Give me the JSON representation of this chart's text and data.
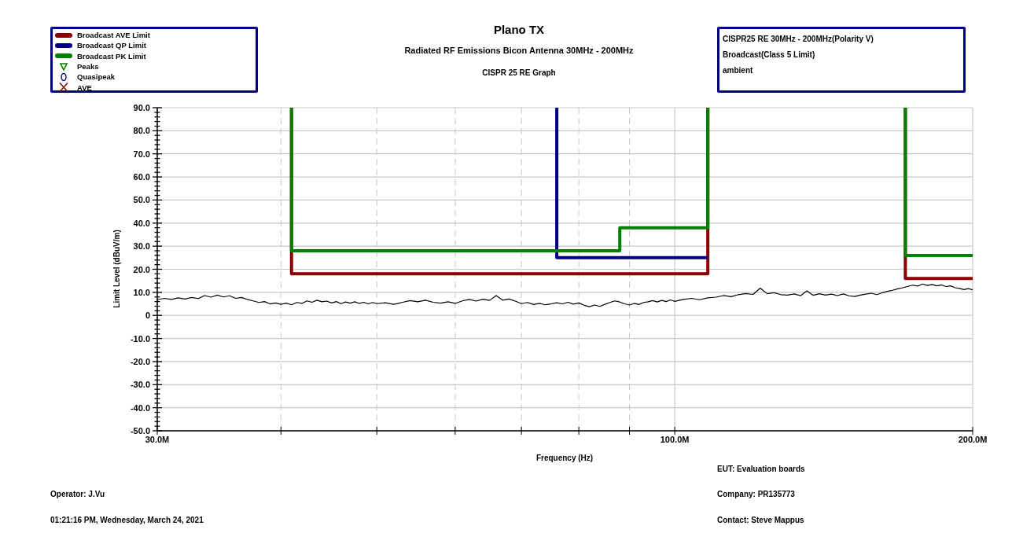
{
  "chart_data": {
    "type": "line",
    "title": "Plano TX",
    "subtitle": "Radiated RF Emissions Bicon Antenna 30MHz - 200MHz",
    "xlabel": "Frequency (Hz)",
    "ylabel": "Limit Level (dBuV/m)",
    "annotations": [
      "CISPR 25 RE Graph",
      "CISPR25 RE 30MHz - 200MHz(Polarity V)",
      "Broadcast(Class 5 Limit)",
      "ambient",
      "EUT: Evaluation boards",
      "Operator: J.Vu",
      "Company: PR135773",
      "01:21:16 PM, Wednesday, March 24, 2021",
      "Contact: Steve Mappus"
    ],
    "log": "x",
    "grid": true,
    "legend": "top left",
    "xlim": [
      30000000,
      200000000
    ],
    "xticks": [
      {
        "value": 30000000,
        "label": "30.0M"
      },
      {
        "value": 40000000,
        "label": null
      },
      {
        "value": 50000000,
        "label": null
      },
      {
        "value": 60000000,
        "label": null
      },
      {
        "value": 70000000,
        "label": null
      },
      {
        "value": 80000000,
        "label": null
      },
      {
        "value": 90000000,
        "label": null
      },
      {
        "value": 100000000,
        "label": "100.0M"
      },
      {
        "value": 200000000,
        "label": "200.0M"
      }
    ],
    "ylim": [
      -50,
      90
    ],
    "yticks": [
      {
        "value": -50,
        "label": "-50.0"
      },
      {
        "value": -48,
        "label": null
      },
      {
        "value": -46,
        "label": null
      },
      {
        "value": -44,
        "label": null
      },
      {
        "value": -42,
        "label": null
      },
      {
        "value": -40,
        "label": "-40.0"
      },
      {
        "value": -38,
        "label": null
      },
      {
        "value": -36,
        "label": null
      },
      {
        "value": -34,
        "label": null
      },
      {
        "value": -32,
        "label": null
      },
      {
        "value": -30,
        "label": "-30.0"
      },
      {
        "value": -28,
        "label": null
      },
      {
        "value": -26,
        "label": null
      },
      {
        "value": -24,
        "label": null
      },
      {
        "value": -22,
        "label": null
      },
      {
        "value": -20,
        "label": "-20.0"
      },
      {
        "value": -18,
        "label": null
      },
      {
        "value": -16,
        "label": null
      },
      {
        "value": -14,
        "label": null
      },
      {
        "value": -12,
        "label": null
      },
      {
        "value": -10,
        "label": "-10.0"
      },
      {
        "value": -8,
        "label": null
      },
      {
        "value": -6,
        "label": null
      },
      {
        "value": -4,
        "label": null
      },
      {
        "value": -2,
        "label": null
      },
      0,
      {
        "value": 2,
        "label": null
      },
      {
        "value": 4,
        "label": null
      },
      {
        "value": 6,
        "label": null
      },
      {
        "value": 8,
        "label": null
      },
      {
        "value": 10,
        "label": "10.0"
      },
      {
        "value": 12,
        "label": null
      },
      {
        "value": 14,
        "label": null
      },
      {
        "value": 16,
        "label": null
      },
      {
        "value": 18,
        "label": null
      },
      {
        "value": 20,
        "label": "20.0"
      },
      {
        "value": 22,
        "label": null
      },
      {
        "value": 24,
        "label": null
      },
      {
        "value": 26,
        "label": null
      },
      {
        "value": 28,
        "label": null
      },
      {
        "value": 30,
        "label": "30.0"
      },
      {
        "value": 32,
        "label": null
      },
      {
        "value": 34,
        "label": null
      },
      {
        "value": 36,
        "label": null
      },
      {
        "value": 38,
        "label": null
      },
      {
        "value": 40,
        "label": "40.0"
      },
      {
        "value": 42,
        "label": null
      },
      {
        "value": 44,
        "label": null
      },
      {
        "value": 46,
        "label": null
      },
      {
        "value": 48,
        "label": null
      },
      {
        "value": 50,
        "label": "50.0"
      },
      {
        "value": 52,
        "label": null
      },
      {
        "value": 54,
        "label": null
      },
      {
        "value": 56,
        "label": null
      },
      {
        "value": 58,
        "label": null
      },
      {
        "value": 60,
        "label": "60.0"
      },
      {
        "value": 62,
        "label": null
      },
      {
        "value": 64,
        "label": null
      },
      {
        "value": 66,
        "label": null
      },
      {
        "value": 68,
        "label": null
      },
      {
        "value": 70,
        "label": "70.0"
      },
      {
        "value": 72,
        "label": null
      },
      {
        "value": 74,
        "label": null
      },
      {
        "value": 76,
        "label": null
      },
      {
        "value": 78,
        "label": null
      },
      {
        "value": 80,
        "label": "80.0"
      },
      {
        "value": 82,
        "label": null
      },
      {
        "value": 84,
        "label": null
      },
      {
        "value": 86,
        "label": null
      },
      {
        "value": 88,
        "label": null
      },
      {
        "value": 90,
        "label": "90.0"
      }
    ],
    "x": [
      30000000,
      30500000,
      31000000,
      31500000,
      32000000,
      32500000,
      33000000,
      33500000,
      34000000,
      34500000,
      35000000,
      35500000,
      36000000,
      36500000,
      37000000,
      37500000,
      38000000,
      38500000,
      39000000,
      39500000,
      40000000,
      40500000,
      41000000,
      41500000,
      42000000,
      42500000,
      43000000,
      43500000,
      44000000,
      44500000,
      45000000,
      45500000,
      46000000,
      46500000,
      47000000,
      47500000,
      48000000,
      48500000,
      49000000,
      49500000,
      50000000,
      51000000,
      52000000,
      53000000,
      54000000,
      55000000,
      56000000,
      57000000,
      58000000,
      59000000,
      60000000,
      61000000,
      62000000,
      63000000,
      64000000,
      65000000,
      66000000,
      67000000,
      68000000,
      69000000,
      70000000,
      71000000,
      72000000,
      73000000,
      74000000,
      75000000,
      76000000,
      77000000,
      78000000,
      79000000,
      80000000,
      81000000,
      82000000,
      83000000,
      84000000,
      85000000,
      86000000,
      87000000,
      88000000,
      89000000,
      90000000,
      91000000,
      92000000,
      93000000,
      94000000,
      95000000,
      96000000,
      97000000,
      98000000,
      99000000,
      100000000,
      102000000,
      104000000,
      106000000,
      108000000,
      110000000,
      112000000,
      114000000,
      116000000,
      118000000,
      120000000,
      122000000,
      124000000,
      126000000,
      128000000,
      130000000,
      132000000,
      134000000,
      136000000,
      138000000,
      140000000,
      142000000,
      144000000,
      146000000,
      148000000,
      150000000,
      152000000,
      154000000,
      156000000,
      158000000,
      160000000,
      162000000,
      164000000,
      166000000,
      168000000,
      170000000,
      172000000,
      174000000,
      176000000,
      178000000,
      180000000,
      182000000,
      184000000,
      186000000,
      188000000,
      190000000,
      192000000,
      194000000,
      196000000,
      198000000,
      200000000
    ],
    "series": [
      {
        "color": "#000000",
        "values": [
          6.8,
          7.4,
          6.9,
          7.6,
          7.1,
          7.8,
          7.3,
          8.6,
          7.9,
          8.8,
          8.0,
          8.5,
          7.4,
          7.8,
          6.9,
          6.3,
          5.6,
          6.0,
          5.0,
          5.4,
          4.8,
          5.3,
          4.6,
          5.6,
          5.2,
          6.3,
          5.7,
          6.6,
          5.9,
          6.2,
          5.4,
          6.0,
          5.1,
          5.8,
          5.3,
          5.9,
          5.2,
          5.7,
          5.0,
          5.6,
          5.1,
          5.5,
          4.8,
          5.6,
          6.4,
          5.9,
          6.6,
          5.7,
          5.3,
          5.9,
          5.2,
          6.3,
          6.9,
          6.2,
          7.0,
          6.5,
          8.6,
          6.6,
          7.1,
          6.2,
          5.1,
          5.6,
          4.7,
          5.2,
          4.6,
          5.0,
          5.5,
          5.0,
          5.7,
          4.9,
          5.4,
          4.4,
          3.8,
          4.5,
          3.9,
          4.8,
          5.6,
          6.3,
          5.8,
          5.0,
          4.5,
          5.2,
          4.7,
          5.6,
          5.9,
          6.4,
          5.8,
          6.5,
          6.0,
          6.7,
          6.1,
          6.9,
          7.4,
          6.8,
          7.6,
          7.9,
          8.6,
          8.1,
          9.0,
          9.5,
          9.1,
          11.8,
          9.4,
          9.8,
          9.0,
          8.8,
          9.3,
          8.5,
          10.6,
          8.7,
          9.4,
          8.8,
          9.2,
          8.6,
          9.3,
          8.5,
          8.2,
          8.8,
          9.2,
          9.6,
          9.0,
          9.8,
          10.4,
          10.9,
          11.5,
          12.0,
          12.6,
          13.1,
          12.7,
          13.6,
          13.0,
          13.4,
          12.8,
          13.2,
          12.5,
          12.8,
          12.0,
          11.7,
          11.2,
          11.6,
          11.1
        ]
      },
      {
        "name": "Broadcast AVE Limit",
        "color": "#8b0000",
        "x": [
          41000000,
          41000000,
          108000000,
          108000000,
          null,
          171000000,
          171000000,
          200000000
        ],
        "values": [
          90,
          18,
          18,
          90,
          null,
          90,
          16,
          16
        ]
      },
      {
        "name": "Broadcast QP Limit",
        "color": "#000080",
        "x": [
          76000000,
          76000000,
          108000000
        ],
        "values": [
          90,
          25,
          25
        ]
      },
      {
        "name": "Broadcast PK Limit",
        "color": "#008000",
        "x": [
          41000000,
          41000000,
          88000000,
          88000000,
          108000000,
          108000000,
          null,
          171000000,
          171000000,
          200000000
        ],
        "values": [
          90,
          28,
          28,
          38,
          38,
          90,
          null,
          90,
          26,
          26
        ]
      },
      {
        "name": "Peaks",
        "type": "scatter",
        "marker": "triangle",
        "color": "#008000",
        "values": [
          null,
          null,
          null,
          null,
          null,
          null,
          null,
          null,
          null,
          null,
          null,
          null,
          null,
          null,
          null,
          null,
          null,
          null,
          null,
          null,
          null,
          null,
          null,
          null,
          null,
          null,
          null,
          null,
          null,
          null,
          null,
          null,
          null,
          null,
          null,
          null,
          null,
          null,
          null,
          null,
          null,
          null,
          null,
          null,
          null,
          null,
          null,
          null,
          null,
          null,
          null,
          null,
          null,
          null,
          null,
          null,
          null,
          null,
          null,
          null,
          null,
          null,
          null,
          null,
          null,
          null,
          null,
          null,
          null,
          null,
          null,
          null,
          null,
          null,
          null,
          null,
          null,
          null,
          null,
          null,
          null,
          null,
          null,
          null,
          null,
          null,
          null,
          null,
          null,
          null,
          null,
          null,
          null,
          null,
          null,
          null,
          null,
          null,
          null,
          null,
          null,
          null,
          null,
          null,
          null,
          null,
          null,
          null,
          null,
          null,
          null,
          null,
          null,
          null,
          null,
          null,
          null,
          null,
          null,
          null,
          null,
          null,
          null,
          null,
          null,
          null,
          null,
          null,
          null,
          null,
          null,
          null,
          null,
          null,
          null,
          null,
          null,
          null,
          null,
          null,
          null
        ]
      },
      {
        "name": "Quasipeak",
        "type": "scatter",
        "marker": "circle",
        "color": "#000080",
        "values": [
          null,
          null,
          null,
          null,
          null,
          null,
          null,
          null,
          null,
          null,
          null,
          null,
          null,
          null,
          null,
          null,
          null,
          null,
          null,
          null,
          null,
          null,
          null,
          null,
          null,
          null,
          null,
          null,
          null,
          null,
          null,
          null,
          null,
          null,
          null,
          null,
          null,
          null,
          null,
          null,
          null,
          null,
          null,
          null,
          null,
          null,
          null,
          null,
          null,
          null,
          null,
          null,
          null,
          null,
          null,
          null,
          null,
          null,
          null,
          null,
          null,
          null,
          null,
          null,
          null,
          null,
          null,
          null,
          null,
          null,
          null,
          null,
          null,
          null,
          null,
          null,
          null,
          null,
          null,
          null,
          null,
          null,
          null,
          null,
          null,
          null,
          null,
          null,
          null,
          null,
          null,
          null,
          null,
          null,
          null,
          null,
          null,
          null,
          null,
          null,
          null,
          null,
          null,
          null,
          null,
          null,
          null,
          null,
          null,
          null,
          null,
          null,
          null,
          null,
          null,
          null,
          null,
          null,
          null,
          null,
          null,
          null,
          null,
          null,
          null,
          null,
          null,
          null,
          null,
          null,
          null,
          null,
          null,
          null,
          null,
          null,
          null,
          null,
          null,
          null,
          null
        ]
      },
      {
        "name": "AVE",
        "type": "scatter",
        "marker": "cross",
        "color": "#8b0000",
        "values": [
          null,
          null,
          null,
          null,
          null,
          null,
          null,
          null,
          null,
          null,
          null,
          null,
          null,
          null,
          null,
          null,
          null,
          null,
          null,
          null,
          null,
          null,
          null,
          null,
          null,
          null,
          null,
          null,
          null,
          null,
          null,
          null,
          null,
          null,
          null,
          null,
          null,
          null,
          null,
          null,
          null,
          null,
          null,
          null,
          null,
          null,
          null,
          null,
          null,
          null,
          null,
          null,
          null,
          null,
          null,
          null,
          null,
          null,
          null,
          null,
          null,
          null,
          null,
          null,
          null,
          null,
          null,
          null,
          null,
          null,
          null,
          null,
          null,
          null,
          null,
          null,
          null,
          null,
          null,
          null,
          null,
          null,
          null,
          null,
          null,
          null,
          null,
          null,
          null,
          null,
          null,
          null,
          null,
          null,
          null,
          null,
          null,
          null,
          null,
          null,
          null,
          null,
          null,
          null,
          null,
          null,
          null,
          null,
          null,
          null,
          null,
          null,
          null,
          null,
          null,
          null,
          null,
          null,
          null,
          null,
          null,
          null,
          null,
          null,
          null,
          null,
          null,
          null,
          null,
          null,
          null,
          null,
          null,
          null,
          null,
          null,
          null,
          null,
          null,
          null,
          null
        ]
      }
    ]
  }
}
